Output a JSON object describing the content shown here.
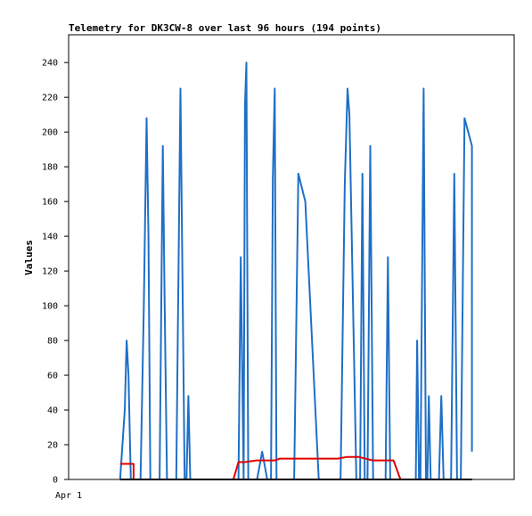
{
  "chart_data": {
    "type": "line",
    "title": "Telemetry for DK3CW-8 over last 96 hours (194 points)",
    "xlabel": "",
    "ylabel": "Values",
    "x_tick_labels": [
      "Apr 1"
    ],
    "y_ticks": [
      0,
      20,
      40,
      60,
      80,
      100,
      120,
      140,
      160,
      180,
      200,
      220,
      240
    ],
    "ylim": [
      0,
      256
    ],
    "xlim": [
      0,
      96
    ],
    "grid": false,
    "legend": "none",
    "series": [
      {
        "color": "#1f6fc6",
        "points": [
          [
            11.1,
            0
          ],
          [
            12.1,
            40
          ],
          [
            12.5,
            80
          ],
          [
            12.9,
            60
          ],
          [
            13.4,
            0
          ],
          [
            15.5,
            0
          ],
          [
            16.2,
            100
          ],
          [
            16.8,
            208
          ],
          [
            17.2,
            140
          ],
          [
            17.6,
            0
          ],
          [
            19.6,
            0
          ],
          [
            20.3,
            192
          ],
          [
            20.7,
            100
          ],
          [
            21.2,
            0
          ],
          [
            23.2,
            0
          ],
          [
            24.1,
            225
          ],
          [
            24.6,
            100
          ],
          [
            25.0,
            0
          ],
          [
            25.4,
            0
          ],
          [
            25.8,
            48
          ],
          [
            26.2,
            0
          ],
          [
            36.6,
            0
          ],
          [
            37.1,
            128
          ],
          [
            37.4,
            64
          ],
          [
            37.7,
            0
          ],
          [
            38.0,
            215
          ],
          [
            38.3,
            240
          ],
          [
            38.7,
            0
          ],
          [
            40.6,
            0
          ],
          [
            41.7,
            16
          ],
          [
            42.8,
            0
          ],
          [
            43.6,
            0
          ],
          [
            44.0,
            174
          ],
          [
            44.4,
            225
          ],
          [
            44.8,
            0
          ],
          [
            48.6,
            0
          ],
          [
            49.5,
            176
          ],
          [
            51.0,
            160
          ],
          [
            53.9,
            0
          ],
          [
            58.6,
            0
          ],
          [
            59.5,
            170
          ],
          [
            60.1,
            225
          ],
          [
            60.5,
            210
          ],
          [
            62.0,
            0
          ],
          [
            62.8,
            0
          ],
          [
            63.3,
            176
          ],
          [
            63.8,
            0
          ],
          [
            64.4,
            0
          ],
          [
            65.0,
            192
          ],
          [
            65.6,
            0
          ],
          [
            68.3,
            0
          ],
          [
            68.8,
            128
          ],
          [
            69.3,
            0
          ],
          [
            74.8,
            0
          ],
          [
            75.1,
            80
          ],
          [
            75.5,
            0
          ],
          [
            75.8,
            0
          ],
          [
            76.5,
            225
          ],
          [
            77.0,
            0
          ],
          [
            77.3,
            0
          ],
          [
            77.6,
            48
          ],
          [
            78.0,
            0
          ],
          [
            79.8,
            0
          ],
          [
            80.3,
            48
          ],
          [
            80.8,
            0
          ],
          [
            82.4,
            0
          ],
          [
            83.1,
            176
          ],
          [
            83.7,
            0
          ],
          [
            84.5,
            0
          ],
          [
            85.3,
            208
          ],
          [
            86.9,
            192
          ],
          [
            86.9,
            16
          ]
        ]
      },
      {
        "color": "#e00000",
        "points": [
          [
            11.1,
            9
          ],
          [
            14.0,
            9
          ],
          [
            14.0,
            0
          ],
          [
            35.5,
            0
          ],
          [
            36.6,
            10
          ],
          [
            38.0,
            10
          ],
          [
            40.5,
            11
          ],
          [
            44.5,
            11
          ],
          [
            45.5,
            12
          ],
          [
            47.0,
            12
          ],
          [
            48.5,
            12
          ],
          [
            54.0,
            12
          ],
          [
            58.0,
            12
          ],
          [
            60.0,
            13
          ],
          [
            62.5,
            13
          ],
          [
            65.5,
            11
          ],
          [
            70.0,
            11
          ],
          [
            71.5,
            0
          ]
        ]
      },
      {
        "color": "#000000",
        "points": [
          [
            11.1,
            0
          ],
          [
            86.9,
            0
          ]
        ]
      }
    ]
  }
}
